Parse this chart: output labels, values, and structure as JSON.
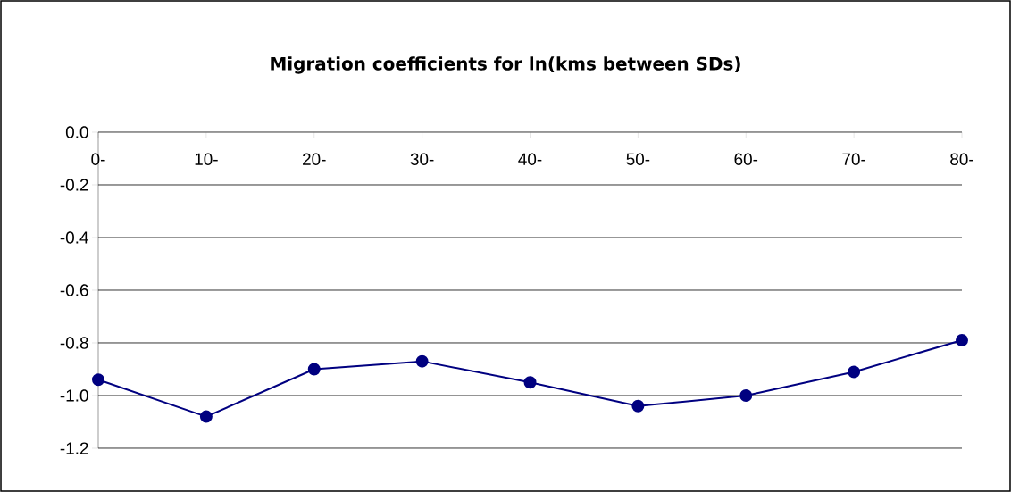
{
  "chart_data": {
    "type": "line",
    "title": "Migration coefficients for ln(kms between SDs)",
    "categories": [
      "0-",
      "10-",
      "20-",
      "30-",
      "40-",
      "50-",
      "60-",
      "70-",
      "80-"
    ],
    "values": [
      -0.94,
      -1.08,
      -0.9,
      -0.87,
      -0.95,
      -1.04,
      -1.0,
      -0.91,
      -0.79
    ],
    "color": "#000080",
    "marker": "circle",
    "line_style": "solid",
    "grid": "y",
    "ylim": [
      -1.2,
      0
    ],
    "yticks": [
      {
        "value": 0,
        "label": "0.0"
      },
      {
        "value": -0.2,
        "label": "-0.2"
      },
      {
        "value": -0.4,
        "label": "-0.4"
      },
      {
        "value": -0.6,
        "label": "-0.6"
      },
      {
        "value": -0.8,
        "label": "-0.8"
      },
      {
        "value": -1.0,
        "label": "-1.0"
      },
      {
        "value": -1.2,
        "label": "-1.2"
      }
    ]
  }
}
